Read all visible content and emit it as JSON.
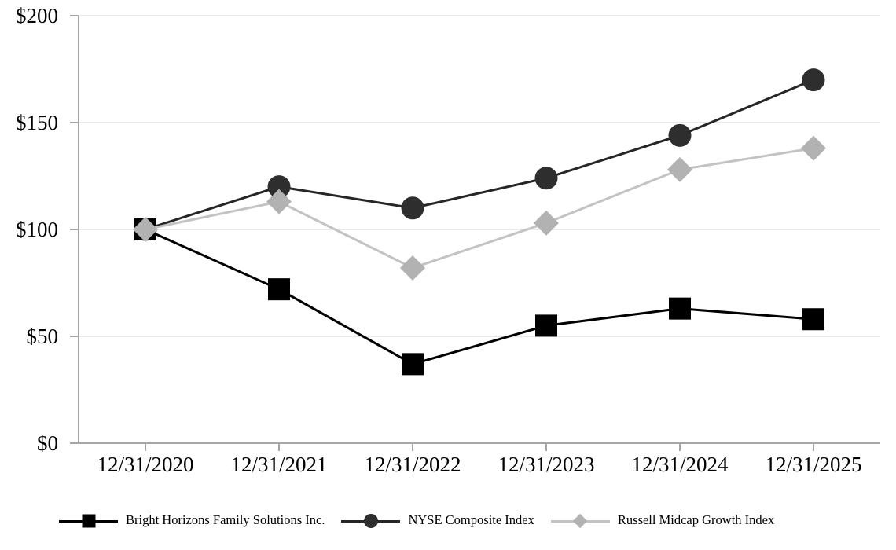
{
  "chart_data": {
    "type": "line",
    "title": "",
    "xlabel": "",
    "ylabel": "",
    "categories": [
      "12/31/2020",
      "12/31/2021",
      "12/31/2022",
      "12/31/2023",
      "12/31/2024",
      "12/31/2025"
    ],
    "series": [
      {
        "name": "Bright Horizons Family Solutions Inc.",
        "values": [
          100,
          72,
          37,
          55,
          63,
          58
        ],
        "marker": "square",
        "line_color": "#000000",
        "marker_color": "#000000"
      },
      {
        "name": "NYSE Composite Index",
        "values": [
          100,
          120,
          110,
          124,
          144,
          170
        ],
        "marker": "circle",
        "line_color": "#262626",
        "marker_color": "#2e2e2e"
      },
      {
        "name": "Russell Midcap Growth Index",
        "values": [
          100,
          113,
          82,
          103,
          128,
          138
        ],
        "marker": "diamond",
        "line_color": "#c3c3c3",
        "marker_color": "#b2b2b2"
      }
    ],
    "draw_order": [
      1,
      0,
      2
    ],
    "y_ticks": [
      {
        "label": "$200",
        "value": 200
      },
      {
        "label": "$150",
        "value": 150
      },
      {
        "label": "$100",
        "value": 100
      },
      {
        "label": "$50",
        "value": 50
      },
      {
        "label": "$0",
        "value": 0
      }
    ],
    "ylim": [
      0,
      200
    ],
    "grid": true,
    "legend_position": "bottom",
    "colors": {
      "axis": "#a6a6a6",
      "gridline": "#e9e9e9",
      "text": "#000000",
      "background": "#ffffff"
    }
  }
}
